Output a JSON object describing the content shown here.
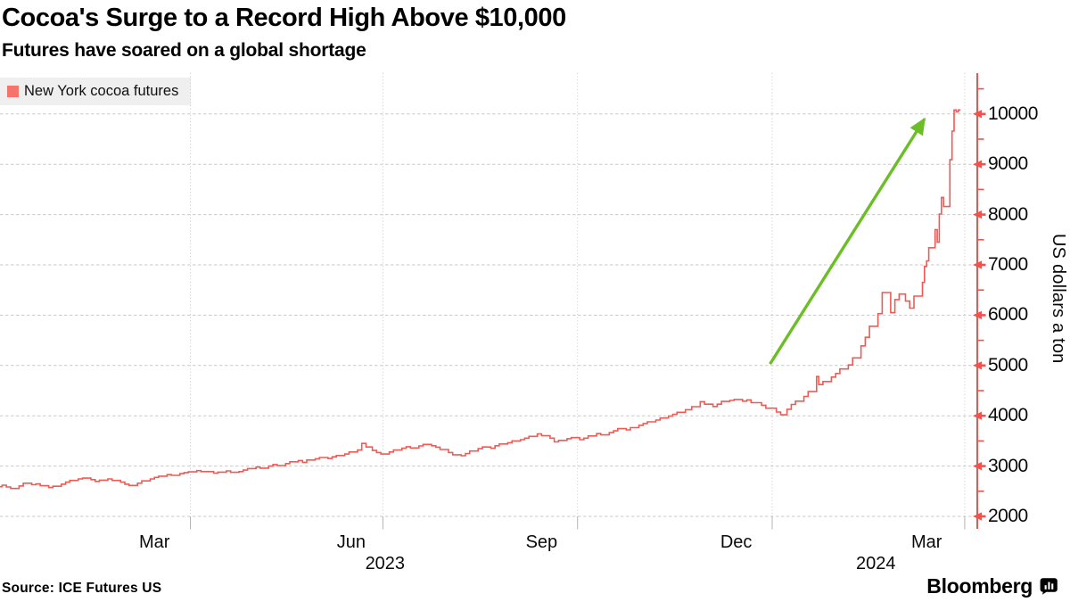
{
  "header": {
    "title": "Cocoa's Surge to a Record High Above $10,000",
    "subtitle": "Futures have soared on a global shortage"
  },
  "legend": {
    "label": "New York cocoa futures"
  },
  "footer": {
    "source": "Source: ICE Futures US",
    "brand": "Bloomberg",
    "brand_icon": "bar-chart-bubble-icon"
  },
  "colors": {
    "line": "#ee5a54",
    "legend_swatch": "#f4736b",
    "axis": "#f0534e",
    "arrow": "#6cbe27",
    "grid": "#c9c9c9",
    "text": "#0a0a0a",
    "legend_bg": "#efefef"
  },
  "chart_data": {
    "type": "line",
    "style": "step",
    "series_name": "New York cocoa futures",
    "title": "Cocoa's Surge to a Record High Above $10,000",
    "subtitle": "Futures have soared on a global shortage",
    "ylabel": "US dollars a ton",
    "grid": true,
    "legend_position": "top-left",
    "y_axis_side": "right",
    "ylim": [
      2000,
      10500
    ],
    "y_major_ticks": [
      10000,
      9000,
      8000,
      7000,
      6000,
      5000,
      4000,
      3000,
      2000
    ],
    "y_minor_ticks": [
      10500,
      9500,
      8500,
      7500,
      6500,
      5500,
      4500,
      3500,
      2500
    ],
    "x_range": [
      "2023-01-01",
      "2024-04-06"
    ],
    "x_grid_dates": [
      "2023-04-01",
      "2023-07-01",
      "2023-10-01",
      "2024-01-01",
      "2024-04-01"
    ],
    "x_ticks": [
      {
        "date": "2023-03-15",
        "label": "Mar"
      },
      {
        "date": "2023-06-16",
        "label": "Jun"
      },
      {
        "date": "2023-09-14",
        "label": "Sep"
      },
      {
        "date": "2023-12-15",
        "label": "Dec"
      },
      {
        "date": "2024-03-14",
        "label": "Mar"
      }
    ],
    "year_labels": [
      {
        "date": "2023-07-02",
        "label": "2023"
      },
      {
        "date": "2024-02-19",
        "label": "2024"
      }
    ],
    "annotation_arrow": {
      "from": [
        "2023-12-31",
        5030
      ],
      "to": [
        "2024-03-13",
        9900
      ]
    },
    "points": [
      [
        "2023-01-02",
        2590
      ],
      [
        "2023-01-04",
        2620
      ],
      [
        "2023-01-06",
        2585
      ],
      [
        "2023-01-10",
        2555
      ],
      [
        "2023-01-12",
        2605
      ],
      [
        "2023-01-16",
        2660
      ],
      [
        "2023-01-18",
        2630
      ],
      [
        "2023-01-20",
        2645
      ],
      [
        "2023-01-24",
        2610
      ],
      [
        "2023-01-26",
        2575
      ],
      [
        "2023-01-30",
        2600
      ],
      [
        "2023-02-01",
        2640
      ],
      [
        "2023-02-03",
        2680
      ],
      [
        "2023-02-07",
        2715
      ],
      [
        "2023-02-09",
        2745
      ],
      [
        "2023-02-13",
        2760
      ],
      [
        "2023-02-15",
        2730
      ],
      [
        "2023-02-17",
        2695
      ],
      [
        "2023-02-21",
        2720
      ],
      [
        "2023-02-23",
        2745
      ],
      [
        "2023-02-27",
        2715
      ],
      [
        "2023-03-01",
        2680
      ],
      [
        "2023-03-03",
        2640
      ],
      [
        "2023-03-07",
        2615
      ],
      [
        "2023-03-09",
        2660
      ],
      [
        "2023-03-13",
        2705
      ],
      [
        "2023-03-15",
        2745
      ],
      [
        "2023-03-17",
        2775
      ],
      [
        "2023-03-21",
        2800
      ],
      [
        "2023-03-23",
        2830
      ],
      [
        "2023-03-27",
        2815
      ],
      [
        "2023-03-29",
        2850
      ],
      [
        "2023-03-31",
        2870
      ],
      [
        "2023-04-04",
        2885
      ],
      [
        "2023-04-06",
        2910
      ],
      [
        "2023-04-12",
        2890
      ],
      [
        "2023-04-14",
        2860
      ],
      [
        "2023-04-18",
        2880
      ],
      [
        "2023-04-20",
        2905
      ],
      [
        "2023-04-24",
        2875
      ],
      [
        "2023-04-26",
        2890
      ],
      [
        "2023-04-28",
        2920
      ],
      [
        "2023-05-02",
        2950
      ],
      [
        "2023-05-04",
        2980
      ],
      [
        "2023-05-08",
        2960
      ],
      [
        "2023-05-10",
        3000
      ],
      [
        "2023-05-12",
        3030
      ],
      [
        "2023-05-16",
        3010
      ],
      [
        "2023-05-18",
        3050
      ],
      [
        "2023-05-22",
        3085
      ],
      [
        "2023-05-24",
        3110
      ],
      [
        "2023-05-26",
        3075
      ],
      [
        "2023-05-30",
        3120
      ],
      [
        "2023-06-01",
        3145
      ],
      [
        "2023-06-05",
        3170
      ],
      [
        "2023-06-07",
        3150
      ],
      [
        "2023-06-09",
        3185
      ],
      [
        "2023-06-13",
        3210
      ],
      [
        "2023-06-15",
        3240
      ],
      [
        "2023-06-19",
        3280
      ],
      [
        "2023-06-21",
        3320
      ],
      [
        "2023-06-23",
        3450
      ],
      [
        "2023-06-26",
        3380
      ],
      [
        "2023-06-28",
        3310
      ],
      [
        "2023-06-30",
        3270
      ],
      [
        "2023-07-04",
        3240
      ],
      [
        "2023-07-06",
        3280
      ],
      [
        "2023-07-10",
        3320
      ],
      [
        "2023-07-12",
        3355
      ],
      [
        "2023-07-14",
        3385
      ],
      [
        "2023-07-18",
        3360
      ],
      [
        "2023-07-20",
        3400
      ],
      [
        "2023-07-24",
        3430
      ],
      [
        "2023-07-26",
        3405
      ],
      [
        "2023-07-28",
        3375
      ],
      [
        "2023-08-01",
        3330
      ],
      [
        "2023-08-03",
        3270
      ],
      [
        "2023-08-07",
        3225
      ],
      [
        "2023-08-09",
        3205
      ],
      [
        "2023-08-11",
        3250
      ],
      [
        "2023-08-15",
        3300
      ],
      [
        "2023-08-17",
        3345
      ],
      [
        "2023-08-21",
        3380
      ],
      [
        "2023-08-23",
        3355
      ],
      [
        "2023-08-25",
        3405
      ],
      [
        "2023-08-29",
        3440
      ],
      [
        "2023-08-31",
        3465
      ],
      [
        "2023-09-04",
        3500
      ],
      [
        "2023-09-06",
        3525
      ],
      [
        "2023-09-08",
        3555
      ],
      [
        "2023-09-12",
        3590
      ],
      [
        "2023-09-14",
        3640
      ],
      [
        "2023-09-18",
        3605
      ],
      [
        "2023-09-20",
        3555
      ],
      [
        "2023-09-22",
        3480
      ],
      [
        "2023-09-26",
        3510
      ],
      [
        "2023-09-28",
        3545
      ],
      [
        "2023-10-02",
        3565
      ],
      [
        "2023-10-04",
        3525
      ],
      [
        "2023-10-06",
        3555
      ],
      [
        "2023-10-10",
        3600
      ],
      [
        "2023-10-12",
        3645
      ],
      [
        "2023-10-16",
        3620
      ],
      [
        "2023-10-18",
        3665
      ],
      [
        "2023-10-20",
        3700
      ],
      [
        "2023-10-24",
        3745
      ],
      [
        "2023-10-26",
        3720
      ],
      [
        "2023-10-30",
        3765
      ],
      [
        "2023-11-01",
        3810
      ],
      [
        "2023-11-03",
        3845
      ],
      [
        "2023-11-07",
        3880
      ],
      [
        "2023-11-09",
        3915
      ],
      [
        "2023-11-13",
        3955
      ],
      [
        "2023-11-15",
        3995
      ],
      [
        "2023-11-17",
        4030
      ],
      [
        "2023-11-21",
        4070
      ],
      [
        "2023-11-24",
        4120
      ],
      [
        "2023-11-28",
        4180
      ],
      [
        "2023-11-30",
        4280
      ],
      [
        "2023-12-04",
        4230
      ],
      [
        "2023-12-06",
        4185
      ],
      [
        "2023-12-08",
        4230
      ],
      [
        "2023-12-12",
        4285
      ],
      [
        "2023-12-14",
        4305
      ],
      [
        "2023-12-18",
        4325
      ],
      [
        "2023-12-20",
        4290
      ],
      [
        "2023-12-22",
        4315
      ],
      [
        "2023-12-27",
        4260
      ],
      [
        "2023-12-29",
        4210
      ],
      [
        "2024-01-03",
        4150
      ],
      [
        "2024-01-05",
        4075
      ],
      [
        "2024-01-08",
        4020
      ],
      [
        "2024-01-10",
        4130
      ],
      [
        "2024-01-12",
        4225
      ],
      [
        "2024-01-16",
        4290
      ],
      [
        "2024-01-18",
        4385
      ],
      [
        "2024-01-22",
        4480
      ],
      [
        "2024-01-23",
        4780
      ],
      [
        "2024-01-25",
        4620
      ],
      [
        "2024-01-29",
        4680
      ],
      [
        "2024-01-31",
        4770
      ],
      [
        "2024-02-02",
        4840
      ],
      [
        "2024-02-06",
        4930
      ],
      [
        "2024-02-08",
        5010
      ],
      [
        "2024-02-12",
        5150
      ],
      [
        "2024-02-14",
        5390
      ],
      [
        "2024-02-16",
        5560
      ],
      [
        "2024-02-20",
        5780
      ],
      [
        "2024-02-22",
        6030
      ],
      [
        "2024-02-26",
        6450
      ],
      [
        "2024-02-28",
        6050
      ],
      [
        "2024-03-01",
        6310
      ],
      [
        "2024-03-04",
        6420
      ],
      [
        "2024-03-06",
        6280
      ],
      [
        "2024-03-08",
        6140
      ],
      [
        "2024-03-12",
        6380
      ],
      [
        "2024-03-13",
        6650
      ],
      [
        "2024-03-14",
        6970
      ],
      [
        "2024-03-15",
        7080
      ],
      [
        "2024-03-18",
        7340
      ],
      [
        "2024-03-19",
        7700
      ],
      [
        "2024-03-20",
        7450
      ],
      [
        "2024-03-21",
        8010
      ],
      [
        "2024-03-22",
        8340
      ],
      [
        "2024-03-25",
        8160
      ],
      [
        "2024-03-26",
        9090
      ],
      [
        "2024-03-27",
        9660
      ],
      [
        "2024-03-28",
        10080
      ],
      [
        "2024-03-29",
        10040
      ],
      [
        "2024-03-30",
        10080
      ]
    ]
  }
}
